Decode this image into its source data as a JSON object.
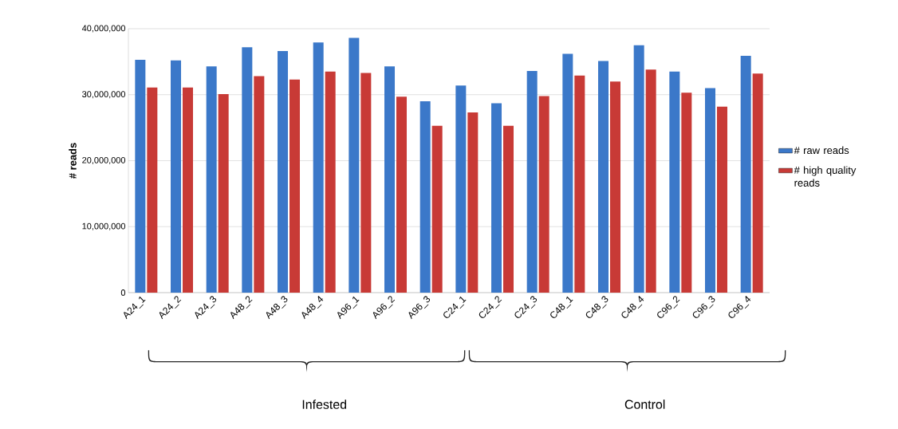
{
  "chart_data": {
    "type": "bar",
    "ylabel": "# reads",
    "categories": [
      "A24_1",
      "A24_2",
      "A24_3",
      "A48_2",
      "A48_3",
      "A48_4",
      "A96_1",
      "A96_2",
      "A96_3",
      "C24_1",
      "C24_2",
      "C24_3",
      "C48_1",
      "C48_3",
      "C48_4",
      "C96_2",
      "C96_3",
      "C96_4"
    ],
    "series": [
      {
        "name": "# raw reads",
        "color": "#3b78c9",
        "values": [
          35300000,
          35200000,
          34300000,
          37200000,
          36600000,
          37900000,
          38600000,
          34300000,
          29000000,
          31400000,
          28700000,
          33600000,
          36200000,
          35100000,
          37500000,
          33500000,
          31000000,
          35900000
        ]
      },
      {
        "name": "# high quality reads",
        "color": "#c83a36",
        "values": [
          31100000,
          31100000,
          30100000,
          32800000,
          32300000,
          33500000,
          33300000,
          29700000,
          25300000,
          27300000,
          25300000,
          29800000,
          32900000,
          32000000,
          33800000,
          30300000,
          28200000,
          33200000
        ]
      }
    ],
    "ylim": [
      0,
      40000000
    ],
    "yticks": [
      {
        "value": 0,
        "label": "0"
      },
      {
        "value": 10000000,
        "label": "10,000,000"
      },
      {
        "value": 20000000,
        "label": "20,000,000"
      },
      {
        "value": 30000000,
        "label": "30,000,000"
      },
      {
        "value": 40000000,
        "label": "40,000,000"
      }
    ],
    "grid": "y",
    "legend": "right",
    "annotations": [
      "Infested",
      "Control"
    ]
  }
}
